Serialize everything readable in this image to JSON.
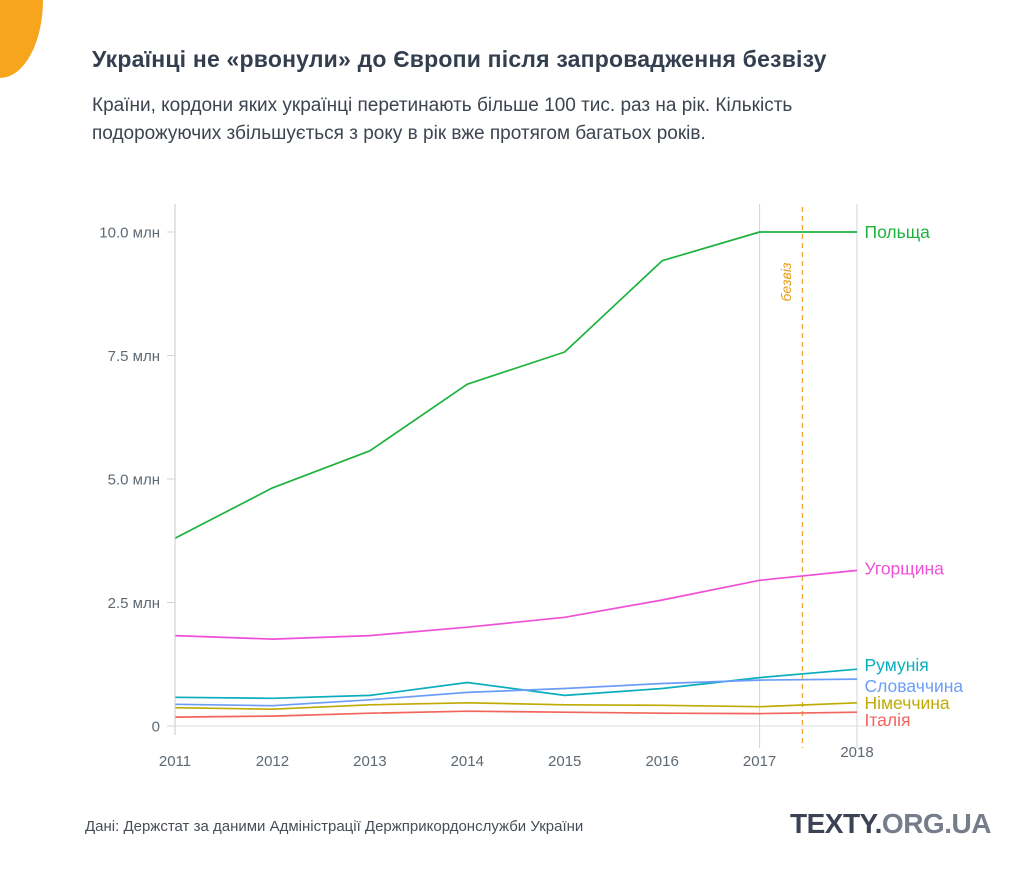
{
  "page": {
    "background_color": "#ffffff",
    "corner_accent_color": "#f7a51c"
  },
  "header": {
    "title": "Українці не «рвонули» до Європи після запровадження безвізу",
    "subtitle": "Країни, кордони яких українці перетинають більше 100 тис. раз на рік. Кількість\nподорожуючих  збільшується з року в рік вже протягом багатьох років."
  },
  "chart_data": {
    "type": "line",
    "title": "",
    "xlabel": "",
    "ylabel": "",
    "categories": [
      2011,
      2012,
      2013,
      2014,
      2015,
      2016,
      2017,
      2018
    ],
    "x_tick_labels": [
      "2011",
      "2012",
      "2013",
      "2014",
      "2015",
      "2016",
      "2017",
      "2018"
    ],
    "y_tick_values": [
      0,
      2.5,
      5.0,
      7.5,
      10.0
    ],
    "y_tick_labels": [
      "0",
      "2.5 млн",
      "5.0 млн",
      "7.5 млн",
      "10.0 млн"
    ],
    "ylim": [
      0,
      10.6
    ],
    "grid": "zero-baseline only; vertical reference lines at 2017 and 2018",
    "legend_position": "labels at right ends of lines",
    "unit": "млн",
    "series": [
      {
        "name": "Польща",
        "color": "#1db23e",
        "values": [
          3.8,
          4.82,
          5.57,
          6.92,
          7.57,
          9.42,
          10.0,
          10.0
        ]
      },
      {
        "name": "Угорщина",
        "color": "#f050d8",
        "values": [
          1.83,
          1.76,
          1.83,
          2.0,
          2.2,
          2.55,
          2.95,
          3.15
        ]
      },
      {
        "name": "Румунія",
        "color": "#0aaebc",
        "values": [
          0.58,
          0.56,
          0.62,
          0.88,
          0.62,
          0.76,
          0.98,
          1.15
        ]
      },
      {
        "name": "Словаччина",
        "color": "#6b9df8",
        "values": [
          0.44,
          0.41,
          0.53,
          0.68,
          0.76,
          0.86,
          0.93,
          0.95
        ]
      },
      {
        "name": "Німеччина",
        "color": "#bfab06",
        "values": [
          0.37,
          0.34,
          0.43,
          0.47,
          0.43,
          0.42,
          0.39,
          0.47
        ]
      },
      {
        "name": "Італія",
        "color": "#f2655c",
        "values": [
          0.18,
          0.2,
          0.26,
          0.3,
          0.28,
          0.26,
          0.25,
          0.28
        ]
      }
    ],
    "annotations": {
      "visa_free_marker": {
        "label": "безвіз",
        "x": 2017.44,
        "style": "dashed-vertical",
        "color": "#f2a52e"
      },
      "vertical_reference_years": [
        2017,
        2018
      ]
    }
  },
  "footer": {
    "source": "Дані: Держстат за даними Адміністрації Держприкордонслужби України",
    "brand_part1": "TEXTY.",
    "brand_part2": "ORG.UA"
  }
}
